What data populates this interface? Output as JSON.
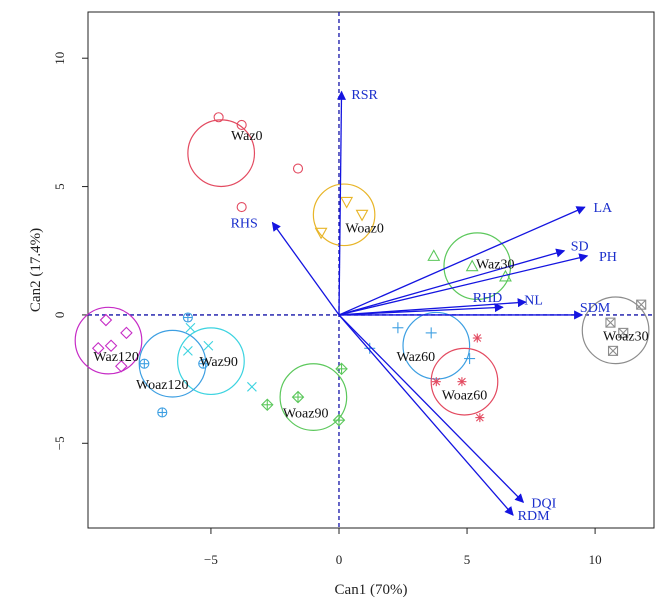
{
  "chart_data": {
    "type": "scatter",
    "subtype": "canonical discriminant biplot",
    "xlabel": "Can1 (70%)",
    "ylabel": "Can2 (17.4%)",
    "xlim": [
      -9.8,
      12.3
    ],
    "ylim": [
      -8.3,
      11.8
    ],
    "x_ticks": [
      -5,
      0,
      5,
      10
    ],
    "y_ticks": [
      -5,
      0,
      5,
      10
    ],
    "x_tick_labels": [
      "−5",
      "0",
      "5",
      "10"
    ],
    "y_tick_labels": [
      "−5",
      "0",
      "5",
      "10"
    ],
    "grid": false,
    "legend": "none",
    "groups": [
      {
        "name": "Waz0",
        "center": [
          -4.6,
          6.3
        ],
        "radius": 1.3,
        "color": "#e34a60",
        "marker": "circle",
        "points": [
          [
            -4.7,
            7.7
          ],
          [
            -3.8,
            7.4
          ],
          [
            -1.6,
            5.7
          ],
          [
            -3.8,
            4.2
          ]
        ],
        "label_pos": [
          -3.6,
          7.0
        ]
      },
      {
        "name": "Woaz0",
        "center": [
          0.2,
          3.9
        ],
        "radius": 1.2,
        "color": "#e8b528",
        "marker": "triangle-down",
        "points": [
          [
            0.3,
            4.4
          ],
          [
            0.9,
            3.9
          ],
          [
            -0.7,
            3.2
          ]
        ],
        "label_pos": [
          1.0,
          3.4
        ]
      },
      {
        "name": "Waz30",
        "center": [
          5.4,
          1.9
        ],
        "radius": 1.3,
        "color": "#5cc85c",
        "marker": "triangle",
        "points": [
          [
            3.7,
            2.3
          ],
          [
            5.2,
            1.9
          ],
          [
            6.5,
            1.5
          ]
        ],
        "label_pos": [
          6.1,
          2.0
        ]
      },
      {
        "name": "Woaz30",
        "center": [
          10.8,
          -0.6
        ],
        "radius": 1.3,
        "color": "#8c8c8c",
        "marker": "square-x",
        "points": [
          [
            11.8,
            0.4
          ],
          [
            10.6,
            -0.3
          ],
          [
            10.7,
            -1.4
          ],
          [
            11.1,
            -0.7
          ]
        ],
        "label_pos": [
          11.2,
          -0.8
        ]
      },
      {
        "name": "Waz60",
        "center": [
          3.8,
          -1.2
        ],
        "radius": 1.3,
        "color": "#3d9fe2",
        "marker": "plus",
        "points": [
          [
            2.3,
            -0.5
          ],
          [
            3.6,
            -0.7
          ],
          [
            5.1,
            -1.7
          ],
          [
            1.2,
            -1.3
          ]
        ],
        "label_pos": [
          3.0,
          -1.6
        ]
      },
      {
        "name": "Woaz60",
        "center": [
          4.9,
          -2.6
        ],
        "radius": 1.3,
        "color": "#e34a60",
        "marker": "asterisk",
        "points": [
          [
            5.4,
            -0.9
          ],
          [
            3.8,
            -2.6
          ],
          [
            4.8,
            -2.6
          ],
          [
            5.5,
            -4.0
          ]
        ],
        "label_pos": [
          4.9,
          -3.1
        ]
      },
      {
        "name": "Waz90",
        "center": [
          -5.0,
          -1.8
        ],
        "radius": 1.3,
        "color": "#3bd3e0",
        "marker": "cross",
        "points": [
          [
            -5.8,
            -0.5
          ],
          [
            -5.1,
            -1.2
          ],
          [
            -5.9,
            -1.4
          ],
          [
            -3.4,
            -2.8
          ]
        ],
        "label_pos": [
          -4.7,
          -1.8
        ]
      },
      {
        "name": "Woaz90",
        "center": [
          -1.0,
          -3.2
        ],
        "radius": 1.3,
        "color": "#5cc85c",
        "marker": "diamond-plus",
        "points": [
          [
            0.1,
            -2.1
          ],
          [
            -1.6,
            -3.2
          ],
          [
            -2.8,
            -3.5
          ],
          [
            0.0,
            -4.1
          ]
        ],
        "label_pos": [
          -1.3,
          -3.8
        ]
      },
      {
        "name": "Woaz120",
        "center": [
          -6.5,
          -1.9
        ],
        "radius": 1.3,
        "color": "#3d9fe2",
        "marker": "circle-plus",
        "points": [
          [
            -5.9,
            -0.1
          ],
          [
            -7.6,
            -1.9
          ],
          [
            -5.3,
            -1.9
          ],
          [
            -6.9,
            -3.8
          ]
        ],
        "label_pos": [
          -6.9,
          -2.7
        ]
      },
      {
        "name": "Waz120",
        "center": [
          -9.0,
          -1.0
        ],
        "radius": 1.3,
        "color": "#c62cc6",
        "marker": "diamond",
        "points": [
          [
            -9.1,
            -0.2
          ],
          [
            -8.3,
            -0.7
          ],
          [
            -8.9,
            -1.2
          ],
          [
            -9.4,
            -1.3
          ],
          [
            -8.5,
            -2.0
          ]
        ],
        "label_pos": [
          -8.7,
          -1.6
        ]
      }
    ],
    "arrows": [
      {
        "name": "RSR",
        "end": [
          0.1,
          8.7
        ],
        "label_pos": [
          1.0,
          8.6
        ]
      },
      {
        "name": "RHS",
        "end": [
          -2.6,
          3.6
        ],
        "label_pos": [
          -3.7,
          3.6
        ]
      },
      {
        "name": "LA",
        "end": [
          9.6,
          4.2
        ],
        "label_pos": [
          10.3,
          4.2
        ]
      },
      {
        "name": "SD",
        "end": [
          8.8,
          2.5
        ],
        "label_pos": [
          9.4,
          2.7
        ]
      },
      {
        "name": "PH",
        "end": [
          9.7,
          2.3
        ],
        "label_pos": [
          10.5,
          2.3
        ]
      },
      {
        "name": "RHD",
        "end": [
          6.4,
          0.3
        ],
        "label_pos": [
          5.8,
          0.7
        ]
      },
      {
        "name": "NL",
        "end": [
          7.3,
          0.5
        ],
        "label_pos": [
          7.6,
          0.6
        ]
      },
      {
        "name": "SDM",
        "end": [
          9.5,
          0.0
        ],
        "label_pos": [
          10.0,
          0.3
        ]
      },
      {
        "name": "DQI",
        "end": [
          7.2,
          -7.3
        ],
        "label_pos": [
          8.0,
          -7.3
        ]
      },
      {
        "name": "RDM",
        "end": [
          6.8,
          -7.8
        ],
        "label_pos": [
          7.6,
          -7.8
        ]
      }
    ],
    "arrow_color": "#1414e0",
    "axis_line_color": "#1414a8"
  }
}
